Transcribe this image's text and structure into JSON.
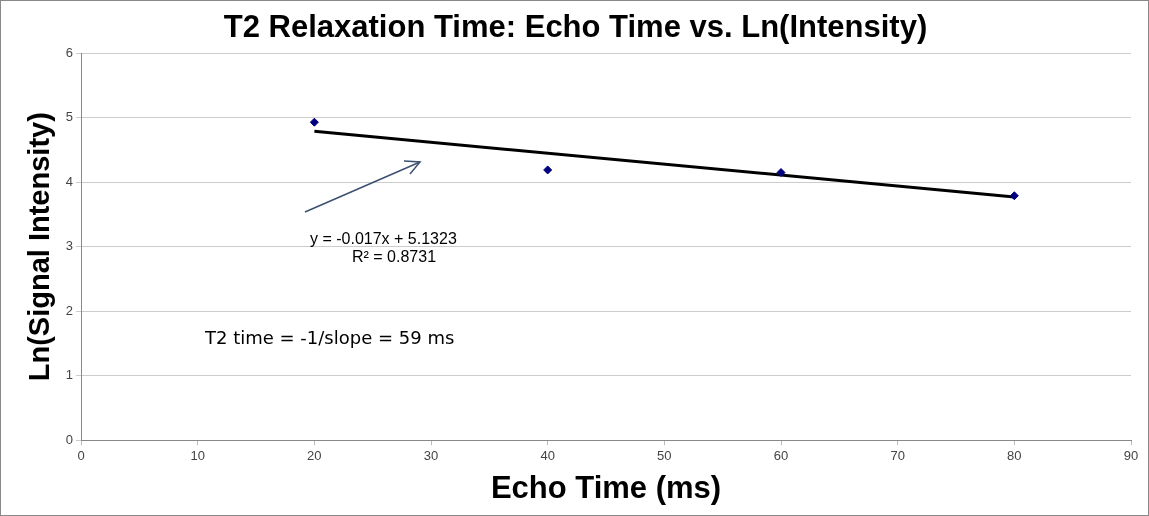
{
  "chart_data": {
    "type": "scatter",
    "title": "T2 Relaxation Time: Echo Time vs. Ln(Intensity)",
    "xlabel": "Echo Time (ms)",
    "ylabel": "Ln(Signal Intensity)",
    "x": [
      20,
      40,
      60,
      80
    ],
    "series": [
      {
        "color": "#000080",
        "values": [
          4.93,
          4.19,
          4.15,
          3.79
        ]
      },
      {
        "type": "line",
        "color": "#000000",
        "x": [
          20,
          80
        ],
        "values": [
          4.79,
          3.77
        ],
        "marker": "none"
      }
    ],
    "xlim": [
      0,
      90
    ],
    "xticks": [
      0,
      10,
      20,
      30,
      40,
      50,
      60,
      70,
      80,
      90
    ],
    "ylim": [
      0,
      6
    ],
    "yticks": [
      0,
      1,
      2,
      3,
      4,
      5,
      6
    ],
    "grid": "y",
    "legend": false,
    "marker": "diamond",
    "annotations": [
      "y = -0.017x + 5.1323",
      "R² = 0.8731",
      "T2 time = -1/slope = 59 ms"
    ]
  }
}
